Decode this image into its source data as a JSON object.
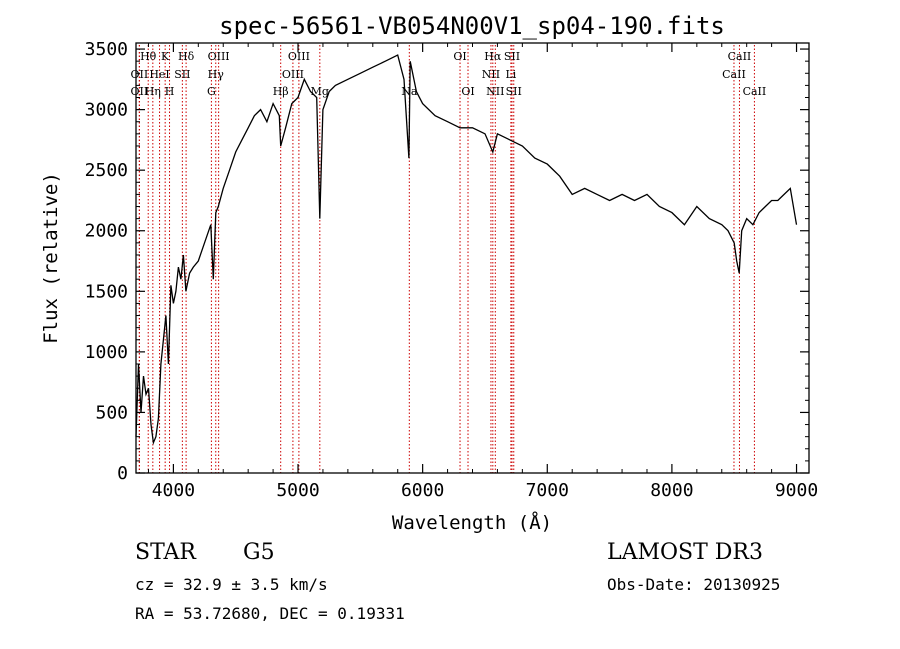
{
  "chart_data": {
    "type": "line",
    "title": "spec-56561-VB054N00V1_sp04-190.fits",
    "xlabel": "Wavelength (Å)",
    "ylabel": "Flux (relative)",
    "xlim": [
      3700,
      9100
    ],
    "ylim": [
      0,
      3550
    ],
    "xticks": [
      4000,
      5000,
      6000,
      7000,
      8000,
      9000
    ],
    "yticks": [
      0,
      500,
      1000,
      1500,
      2000,
      2500,
      3000,
      3500
    ],
    "grid": false,
    "line_color": "#000000",
    "marker_line_color": "#cc0000",
    "x": [
      3700,
      3720,
      3740,
      3760,
      3780,
      3800,
      3820,
      3840,
      3860,
      3880,
      3900,
      3920,
      3940,
      3960,
      3980,
      4000,
      4020,
      4040,
      4060,
      4080,
      4100,
      4130,
      4160,
      4200,
      4250,
      4300,
      4320,
      4340,
      4360,
      4400,
      4450,
      4500,
      4550,
      4600,
      4650,
      4700,
      4750,
      4800,
      4850,
      4861,
      4900,
      4950,
      5000,
      5050,
      5100,
      5150,
      5175,
      5200,
      5250,
      5300,
      5400,
      5500,
      5600,
      5700,
      5800,
      5850,
      5890,
      5900,
      5950,
      6000,
      6100,
      6200,
      6300,
      6400,
      6500,
      6563,
      6600,
      6700,
      6800,
      6900,
      7000,
      7100,
      7200,
      7300,
      7400,
      7500,
      7600,
      7700,
      7800,
      7900,
      8000,
      8100,
      8200,
      8300,
      8400,
      8450,
      8500,
      8520,
      8540,
      8560,
      8600,
      8650,
      8700,
      8750,
      8800,
      8850,
      8900,
      8950,
      9000
    ],
    "y": [
      300,
      900,
      500,
      800,
      650,
      700,
      400,
      250,
      300,
      450,
      900,
      1100,
      1300,
      900,
      1550,
      1400,
      1500,
      1700,
      1600,
      1800,
      1500,
      1650,
      1700,
      1750,
      1900,
      2050,
      1600,
      2150,
      2200,
      2350,
      2500,
      2650,
      2750,
      2850,
      2950,
      3000,
      2900,
      3050,
      2950,
      2700,
      2850,
      3050,
      3100,
      3250,
      3150,
      3100,
      2100,
      3000,
      3150,
      3200,
      3250,
      3300,
      3350,
      3400,
      3450,
      3250,
      2600,
      3400,
      3150,
      3050,
      2950,
      2900,
      2850,
      2850,
      2800,
      2650,
      2800,
      2750,
      2700,
      2600,
      2550,
      2450,
      2300,
      2350,
      2300,
      2250,
      2300,
      2250,
      2300,
      2200,
      2150,
      2050,
      2200,
      2100,
      2050,
      2000,
      1900,
      1750,
      1650,
      2000,
      2100,
      2050,
      2150,
      2200,
      2250,
      2250,
      2300,
      2350,
      2050
    ],
    "lines": [
      {
        "label": "Hθ",
        "x": 3798,
        "row": 0
      },
      {
        "label": "K",
        "x": 3934,
        "row": 0
      },
      {
        "label": "Hδ",
        "x": 4102,
        "row": 0
      },
      {
        "label": "OIII",
        "x": 4363,
        "row": 0
      },
      {
        "label": "OIII",
        "x": 5007,
        "row": 0
      },
      {
        "label": "OI",
        "x": 6300,
        "row": 0
      },
      {
        "label": "Hα",
        "x": 6563,
        "row": 0
      },
      {
        "label": "SII",
        "x": 6717,
        "row": 0
      },
      {
        "label": "CaII",
        "x": 8542,
        "row": 0
      },
      {
        "label": "OII",
        "x": 3727,
        "row": 1
      },
      {
        "label": "HeI",
        "x": 3889,
        "row": 1
      },
      {
        "label": "SII",
        "x": 4072,
        "row": 1
      },
      {
        "label": "Hγ",
        "x": 4340,
        "row": 1
      },
      {
        "label": "OIII",
        "x": 4959,
        "row": 1
      },
      {
        "label": "NII",
        "x": 6548,
        "row": 1
      },
      {
        "label": "Li",
        "x": 6708,
        "row": 1
      },
      {
        "label": "CaII",
        "x": 8498,
        "row": 1
      },
      {
        "label": "OII",
        "x": 3727,
        "row": 2
      },
      {
        "label": "Hη",
        "x": 3835,
        "row": 2
      },
      {
        "label": "H",
        "x": 3969,
        "row": 2
      },
      {
        "label": "G",
        "x": 4305,
        "row": 2
      },
      {
        "label": "Hβ",
        "x": 4861,
        "row": 2
      },
      {
        "label": "Mg",
        "x": 5175,
        "row": 2
      },
      {
        "label": "Na",
        "x": 5893,
        "row": 2
      },
      {
        "label": "OI",
        "x": 6364,
        "row": 2
      },
      {
        "label": "NII",
        "x": 6583,
        "row": 2
      },
      {
        "label": "SII",
        "x": 6731,
        "row": 2
      },
      {
        "label": "CaII",
        "x": 8662,
        "row": 2
      }
    ]
  },
  "info": {
    "object": "STAR",
    "subclass": "G5",
    "survey": "LAMOST DR3",
    "cz": "cz = 32.9 ± 3.5 km/s",
    "obs_date": "Obs-Date: 20130925",
    "radec": "RA =  53.72680, DEC =    0.19331"
  }
}
